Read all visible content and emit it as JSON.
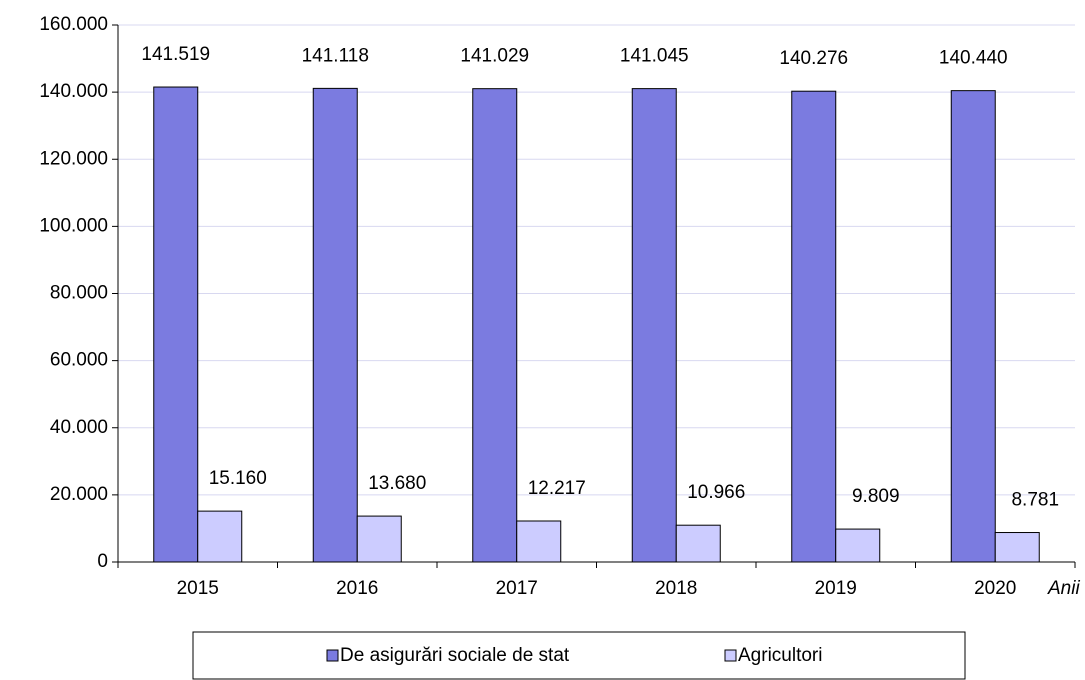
{
  "chart_data": {
    "type": "bar",
    "x_label": "Anii",
    "categories": [
      "2015",
      "2016",
      "2017",
      "2018",
      "2019",
      "2020"
    ],
    "series": [
      {
        "name": "De asigurări sociale de stat",
        "color": "#7b7be0",
        "values": [
          141519,
          141118,
          141029,
          141045,
          140276,
          140440
        ],
        "value_labels": [
          "141.519",
          "141.118",
          "141.029",
          "141.045",
          "140.276",
          "140.440"
        ]
      },
      {
        "name": "Agricultori",
        "color": "#ccccff",
        "values": [
          15160,
          13680,
          12217,
          10966,
          9809,
          8781
        ],
        "value_labels": [
          "15.160",
          "13.680",
          "12.217",
          "10.966",
          "9.809",
          "8.781"
        ]
      }
    ],
    "ylim": [
      0,
      160000
    ],
    "yticks": [
      0,
      {
        "value": 20000,
        "label": "20.000"
      },
      {
        "value": 40000,
        "label": "40.000"
      },
      {
        "value": 60000,
        "label": "60.000"
      },
      {
        "value": 80000,
        "label": "80.000"
      },
      {
        "value": 100000,
        "label": "100.000"
      },
      {
        "value": 120000,
        "label": "120.000"
      },
      {
        "value": 140000,
        "label": "140.000"
      },
      {
        "value": 160000,
        "label": "160.000"
      }
    ],
    "grid": true,
    "legend": "bottom"
  }
}
